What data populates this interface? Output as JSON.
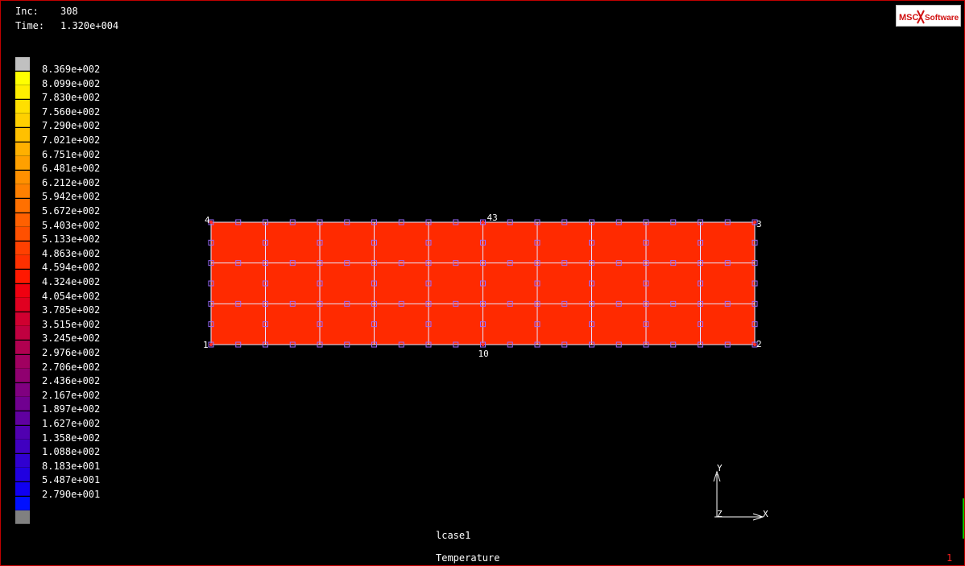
{
  "hud": {
    "inc_label": "Inc:",
    "inc_value": "308",
    "time_label": "Time:",
    "time_value": "1.320e+004"
  },
  "logo": {
    "name": "msc-software-logo",
    "text_msc": "MSC",
    "text_software": "Software"
  },
  "legend": {
    "values": [
      "8.369e+002",
      "8.099e+002",
      "7.830e+002",
      "7.560e+002",
      "7.290e+002",
      "7.021e+002",
      "6.751e+002",
      "6.481e+002",
      "6.212e+002",
      "5.942e+002",
      "5.672e+002",
      "5.403e+002",
      "5.133e+002",
      "4.863e+002",
      "4.594e+002",
      "4.324e+002",
      "4.054e+002",
      "3.785e+002",
      "3.515e+002",
      "3.245e+002",
      "2.976e+002",
      "2.706e+002",
      "2.436e+002",
      "2.167e+002",
      "1.897e+002",
      "1.627e+002",
      "1.358e+002",
      "1.088e+002",
      "8.183e+001",
      "5.487e+001",
      "2.790e+001"
    ],
    "colors": [
      "#c0c0c0",
      "#ffff00",
      "#ffee00",
      "#ffdf00",
      "#ffd000",
      "#ffc000",
      "#ffb000",
      "#ffa000",
      "#ff9000",
      "#ff8000",
      "#ff7000",
      "#ff6000",
      "#ff5000",
      "#ff4000",
      "#ff3000",
      "#ff1800",
      "#f00010",
      "#e00020",
      "#d00030",
      "#c00040",
      "#b00050",
      "#a00060",
      "#900070",
      "#800080",
      "#700090",
      "#6000a0",
      "#5000b0",
      "#4000c0",
      "#3000d0",
      "#2000e0",
      "#1000f0",
      "#0010ff",
      "#808080"
    ]
  },
  "model": {
    "fill_color": "#ff2a00",
    "edge_color": "#e8e8ff",
    "node_marker_color": "#9a6cff",
    "corner_node_color": "#ff3030",
    "node_labels": [
      "1",
      "2",
      "3",
      "4",
      "10",
      "43"
    ]
  },
  "axes": {
    "x_label": "X",
    "y_label": "Y",
    "z_label": "Z"
  },
  "footer": {
    "lcase": "lcase1",
    "result": "Temperature",
    "page": "1"
  }
}
